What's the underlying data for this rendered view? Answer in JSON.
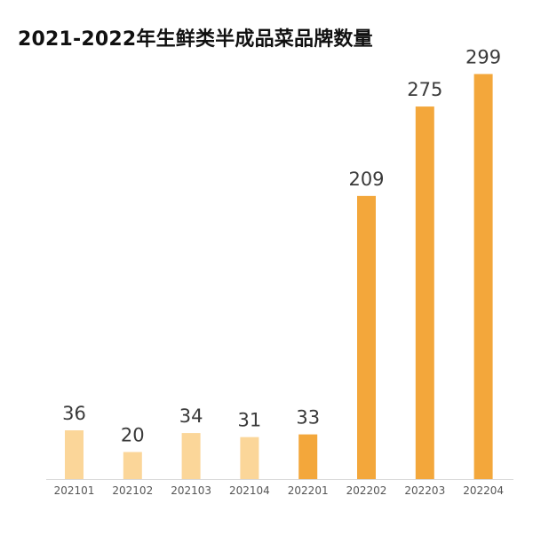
{
  "chart_data": {
    "type": "bar",
    "title": "2021-2022年生鲜类半成品菜品牌数量",
    "xlabel": "",
    "ylabel": "",
    "categories": [
      "202101",
      "202102",
      "202103",
      "202104",
      "202201",
      "202202",
      "202203",
      "202204"
    ],
    "values": [
      36,
      20,
      34,
      31,
      33,
      209,
      275,
      299
    ],
    "ylim": [
      0,
      310
    ],
    "grid": false,
    "legend": "none",
    "colors": {
      "bar_2021": "#fbd699",
      "bar_2022": "#f3a73b",
      "axis": "#d9d9d9",
      "title": "#111111",
      "value_label": "#3a3a3a",
      "tick_label": "#555555"
    }
  }
}
